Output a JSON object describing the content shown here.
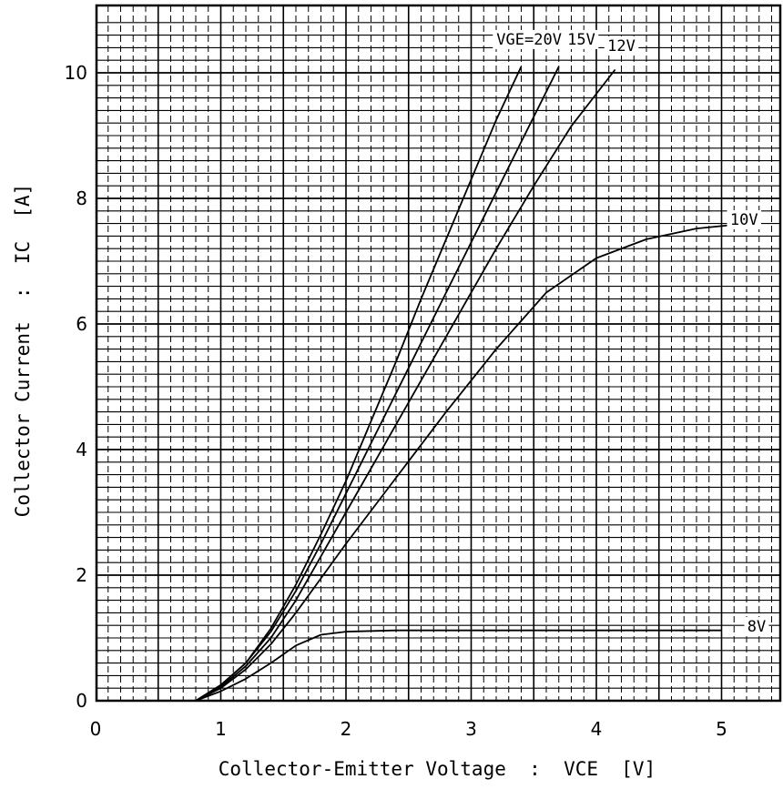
{
  "chart_data": {
    "type": "line",
    "title": "",
    "xlabel": "Collector-Emitter Voltage  :  VCE  [V]",
    "ylabel": "Collector Current  :  IC  [A]",
    "xlim": [
      0,
      5.5
    ],
    "ylim": [
      0,
      11
    ],
    "x_ticks": [
      0,
      1,
      2,
      3,
      4,
      5
    ],
    "y_ticks": [
      0,
      2,
      4,
      6,
      8,
      10
    ],
    "grid": true,
    "legend": "none",
    "series": [
      {
        "name": "VGE=20V,",
        "label_at": [
          3.5,
          10.45
        ],
        "points": [
          [
            0.8,
            0
          ],
          [
            1.0,
            0.25
          ],
          [
            1.2,
            0.6
          ],
          [
            1.4,
            1.15
          ],
          [
            1.6,
            1.85
          ],
          [
            1.8,
            2.65
          ],
          [
            2.0,
            3.5
          ],
          [
            2.2,
            4.45
          ],
          [
            2.4,
            5.4
          ],
          [
            2.6,
            6.4
          ],
          [
            2.8,
            7.35
          ],
          [
            3.0,
            8.3
          ],
          [
            3.2,
            9.25
          ],
          [
            3.4,
            10.1
          ]
        ]
      },
      {
        "name": "15V",
        "label_at": [
          3.88,
          10.45
        ],
        "points": [
          [
            0.8,
            0
          ],
          [
            1.0,
            0.25
          ],
          [
            1.2,
            0.6
          ],
          [
            1.4,
            1.1
          ],
          [
            1.6,
            1.75
          ],
          [
            1.8,
            2.5
          ],
          [
            2.0,
            3.3
          ],
          [
            2.2,
            4.1
          ],
          [
            2.5,
            5.3
          ],
          [
            2.8,
            6.5
          ],
          [
            3.1,
            7.7
          ],
          [
            3.4,
            8.9
          ],
          [
            3.7,
            10.1
          ]
        ]
      },
      {
        "name": "12V",
        "label_at": [
          4.2,
          10.35
        ],
        "points": [
          [
            0.8,
            0
          ],
          [
            1.0,
            0.22
          ],
          [
            1.2,
            0.55
          ],
          [
            1.4,
            1.0
          ],
          [
            1.6,
            1.6
          ],
          [
            1.8,
            2.3
          ],
          [
            2.0,
            3.0
          ],
          [
            2.3,
            4.05
          ],
          [
            2.6,
            5.1
          ],
          [
            2.9,
            6.15
          ],
          [
            3.2,
            7.2
          ],
          [
            3.5,
            8.2
          ],
          [
            3.8,
            9.15
          ],
          [
            4.15,
            10.05
          ]
        ]
      },
      {
        "name": "10V",
        "label_at": [
          5.18,
          7.58
        ],
        "points": [
          [
            0.8,
            0
          ],
          [
            1.0,
            0.2
          ],
          [
            1.2,
            0.5
          ],
          [
            1.4,
            0.9
          ],
          [
            1.6,
            1.4
          ],
          [
            1.8,
            1.95
          ],
          [
            2.0,
            2.5
          ],
          [
            2.4,
            3.55
          ],
          [
            2.8,
            4.6
          ],
          [
            3.2,
            5.6
          ],
          [
            3.6,
            6.5
          ],
          [
            4.0,
            7.05
          ],
          [
            4.4,
            7.35
          ],
          [
            4.8,
            7.52
          ],
          [
            5.1,
            7.58
          ]
        ]
      },
      {
        "name": "8V",
        "label_at": [
          5.28,
          1.1
        ],
        "points": [
          [
            0.8,
            0
          ],
          [
            1.0,
            0.15
          ],
          [
            1.2,
            0.35
          ],
          [
            1.4,
            0.6
          ],
          [
            1.6,
            0.88
          ],
          [
            1.8,
            1.05
          ],
          [
            2.0,
            1.1
          ],
          [
            2.4,
            1.12
          ],
          [
            3.0,
            1.12
          ],
          [
            4.0,
            1.12
          ],
          [
            5.0,
            1.12
          ]
        ]
      }
    ]
  }
}
